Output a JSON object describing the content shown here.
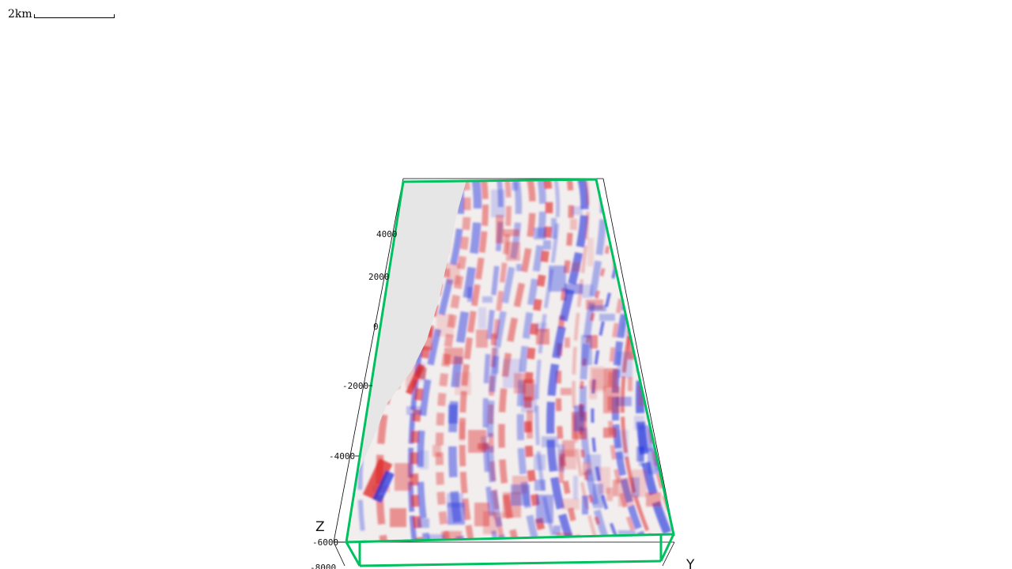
{
  "scale_bar": {
    "label": "2km"
  },
  "axes": {
    "z_label": "Z",
    "y_label": "Y",
    "z_ticks": [
      "4000",
      "2000",
      "0",
      "-2000",
      "-4000",
      "-6000",
      "-8000"
    ]
  },
  "colors": {
    "box_highlight": "#00c060",
    "box_edge": "#000000",
    "seismic_positive": "#dd2222",
    "seismic_negative": "#2233dd",
    "seismic_neutral": "#f2f2f2",
    "background_fill": "#e6e6e6"
  }
}
